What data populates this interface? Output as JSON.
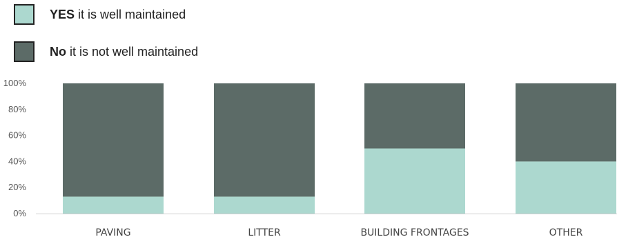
{
  "legend": {
    "yes": {
      "bold": "YES",
      "rest": " it is well maintained"
    },
    "no": {
      "bold": "No",
      "rest": " it is not well maintained"
    }
  },
  "colors": {
    "yes": "#acd8cf",
    "no": "#5c6b67"
  },
  "chart_data": {
    "type": "bar",
    "stacked": true,
    "categories": [
      "PAVING",
      "LITTER",
      "BUILDING FRONTAGES",
      "OTHER"
    ],
    "series": [
      {
        "name": "YES it is well maintained",
        "values": [
          13,
          13,
          50,
          40
        ]
      },
      {
        "name": "No it is not well maintained",
        "values": [
          87,
          87,
          50,
          60
        ]
      }
    ],
    "ylim": [
      0,
      100
    ],
    "yticks": [
      "0%",
      "20%",
      "40%",
      "60%",
      "80%",
      "100%"
    ],
    "legend_position": "top-left",
    "grid": false
  }
}
